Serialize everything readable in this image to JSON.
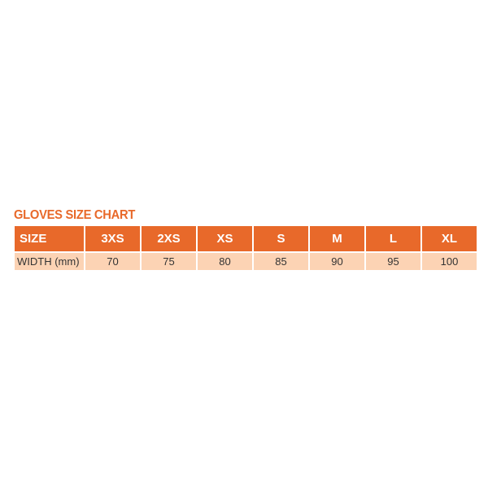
{
  "title": "GLOVES SIZE CHART",
  "header": [
    "SIZE",
    "3XS",
    "2XS",
    "XS",
    "S",
    "M",
    "L",
    "XL"
  ],
  "row": [
    "WIDTH (mm)",
    "70",
    "75",
    "80",
    "85",
    "90",
    "95",
    "100"
  ],
  "colors": {
    "header": "#e8692a",
    "row": "#fcd3b4"
  }
}
